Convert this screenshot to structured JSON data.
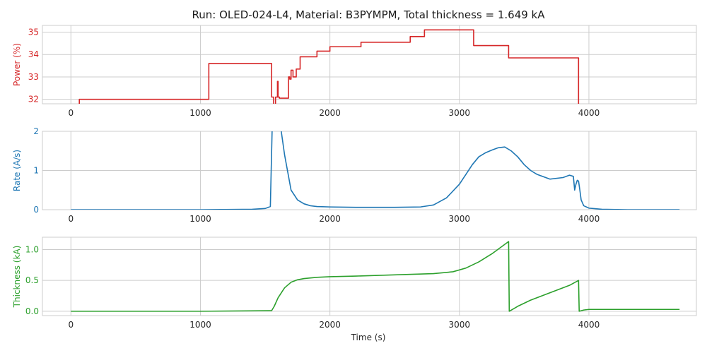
{
  "chart_data": {
    "type": "line",
    "title": "Run: OLED-024-L4, Material: B3PYMPM, Total thickness = 1.649 kA",
    "xlabel": "Time (s)",
    "panels": [
      {
        "ylabel": "Power (%)",
        "color": "#d62728",
        "xlim": [
          -220,
          4830
        ],
        "ylim": [
          31.8,
          35.3
        ],
        "xticks": [
          0,
          1000,
          2000,
          3000,
          4000
        ],
        "yticks": [
          32,
          33,
          34,
          35
        ],
        "grid": true,
        "step": true,
        "series": [
          {
            "x": [
              0,
              65,
              1065,
              1550,
              1565,
              1580,
              1595,
              1600,
              1610,
              1680,
              1690,
              1700,
              1715,
              1740,
              1770,
              1830,
              1900,
              1950,
              2000,
              2080,
              2240,
              2620,
              2730,
              3110,
              3380,
              3920,
              3935
            ],
            "y": [
              31.7,
              32.0,
              33.6,
              32.1,
              31.7,
              32.1,
              32.8,
              32.1,
              32.05,
              33.0,
              32.9,
              33.3,
              33.0,
              33.35,
              33.9,
              33.9,
              34.15,
              34.15,
              34.35,
              34.35,
              34.55,
              34.8,
              35.1,
              34.4,
              33.85,
              31.7,
              31.7
            ]
          }
        ]
      },
      {
        "ylabel": "Rate (A/s)",
        "color": "#1f77b4",
        "xlim": [
          -220,
          4830
        ],
        "ylim": [
          0,
          2.0
        ],
        "xticks": [
          0,
          1000,
          2000,
          3000,
          4000
        ],
        "yticks": [
          0,
          1,
          2
        ],
        "grid": true,
        "step": false,
        "series": [
          {
            "x": [
              0,
              500,
              1000,
              1400,
              1500,
              1540,
              1555,
              1565,
              1575,
              1600,
              1620,
              1650,
              1700,
              1750,
              1800,
              1850,
              1900,
              2000,
              2200,
              2500,
              2700,
              2800,
              2900,
              3000,
              3050,
              3100,
              3150,
              3200,
              3250,
              3300,
              3350,
              3400,
              3450,
              3500,
              3550,
              3600,
              3700,
              3800,
              3850,
              3880,
              3890,
              3900,
              3910,
              3920,
              3930,
              3940,
              3960,
              4000,
              4100,
              4300,
              4700
            ],
            "y": [
              0.0,
              0.0,
              0.0,
              0.01,
              0.03,
              0.08,
              2.2,
              2.4,
              2.4,
              2.3,
              2.1,
              1.4,
              0.5,
              0.25,
              0.15,
              0.1,
              0.08,
              0.07,
              0.06,
              0.06,
              0.07,
              0.12,
              0.3,
              0.65,
              0.9,
              1.15,
              1.35,
              1.45,
              1.52,
              1.58,
              1.6,
              1.5,
              1.35,
              1.15,
              1.0,
              0.9,
              0.78,
              0.82,
              0.88,
              0.85,
              0.5,
              0.65,
              0.75,
              0.73,
              0.5,
              0.25,
              0.1,
              0.04,
              0.01,
              0.0,
              0.0
            ]
          }
        ]
      },
      {
        "ylabel": "Thickness (kA)",
        "color": "#2ca02c",
        "xlim": [
          -220,
          4830
        ],
        "ylim": [
          -0.07,
          1.2
        ],
        "xticks": [
          0,
          1000,
          2000,
          3000,
          4000
        ],
        "yticks": [
          0.0,
          0.5,
          1.0
        ],
        "ytick_labels": [
          "0.0",
          "0.5",
          "1.0"
        ],
        "grid": true,
        "step": false,
        "series": [
          {
            "x": [
              0,
              1000,
              1550,
              1570,
              1600,
              1650,
              1700,
              1750,
              1800,
              1900,
              2000,
              2200,
              2500,
              2800,
              2950,
              3050,
              3150,
              3250,
              3380,
              3385,
              3450,
              3550,
              3650,
              3750,
              3850,
              3920,
              3925,
              3960,
              4000,
              4700
            ],
            "y": [
              0.0,
              0.0,
              0.01,
              0.08,
              0.22,
              0.38,
              0.47,
              0.51,
              0.53,
              0.55,
              0.56,
              0.57,
              0.59,
              0.61,
              0.64,
              0.7,
              0.8,
              0.93,
              1.13,
              0.0,
              0.08,
              0.18,
              0.26,
              0.34,
              0.42,
              0.5,
              0.0,
              0.02,
              0.03,
              0.03
            ]
          }
        ]
      }
    ]
  }
}
